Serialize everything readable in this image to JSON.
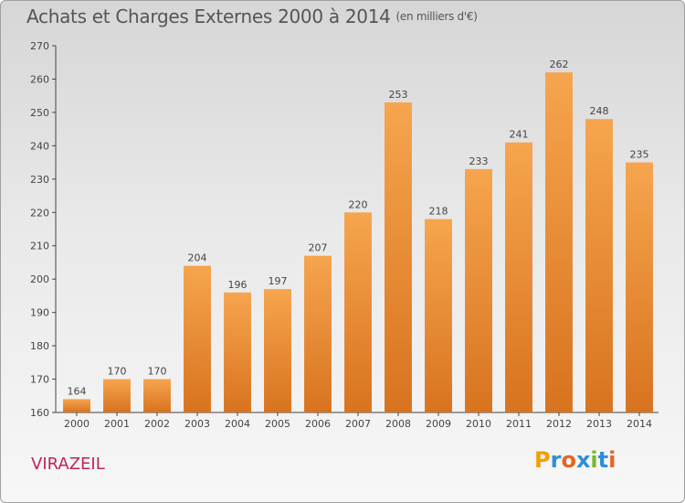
{
  "header": {
    "title": "Achats et Charges Externes 2000 à 2014",
    "subtitle": "(en milliers d'€)"
  },
  "commune_name": "VIRAZEIL",
  "logo": {
    "letters": [
      "P",
      "r",
      "o",
      "x",
      "i",
      "t",
      "i"
    ],
    "colors": [
      "#f0a000",
      "#2e8fd8",
      "#e8641e",
      "#2e8fd8",
      "#7cb82f",
      "#2e8fd8",
      "#e8641e"
    ]
  },
  "chart_data": {
    "type": "bar",
    "title": "Achats et Charges Externes 2000 à 2014",
    "subtitle": "(en milliers d'€)",
    "xlabel": "",
    "ylabel": "",
    "categories": [
      "2000",
      "2001",
      "2002",
      "2003",
      "2004",
      "2005",
      "2006",
      "2007",
      "2008",
      "2009",
      "2010",
      "2011",
      "2012",
      "2013",
      "2014"
    ],
    "values": [
      164,
      170,
      170,
      204,
      196,
      197,
      207,
      220,
      253,
      218,
      233,
      241,
      262,
      248,
      235
    ],
    "ylim": [
      160,
      270
    ],
    "yticks": [
      160,
      170,
      180,
      190,
      200,
      210,
      220,
      230,
      240,
      250,
      260,
      270
    ],
    "grid": false,
    "bar_color_light": "#f6a54e",
    "bar_color_dark": "#d8731f"
  }
}
